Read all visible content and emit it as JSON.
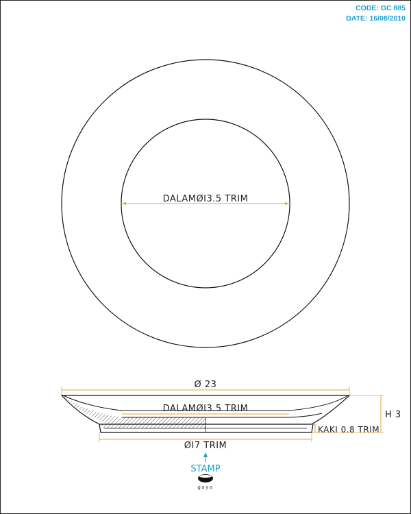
{
  "header": {
    "code": "CODE: GC 885",
    "date": "DATE: 16/08/2010"
  },
  "top_view": {
    "inner_label": "DALAMØI3.5 TRIM"
  },
  "side_view": {
    "outer_diameter_label": "Ø 23",
    "inner_label": "DALAMØI3.5 TRIM",
    "foot_label": "ØI7 TRIM",
    "height_label": "H 3",
    "foot_height_label": "KAKI 0.8 TRIM"
  },
  "stamp": {
    "label": "STAMP",
    "logo_text": "gaya"
  },
  "colors": {
    "dimension_line": "#e8a23a",
    "accent": "#1a9fd0",
    "outline": "#111111"
  }
}
